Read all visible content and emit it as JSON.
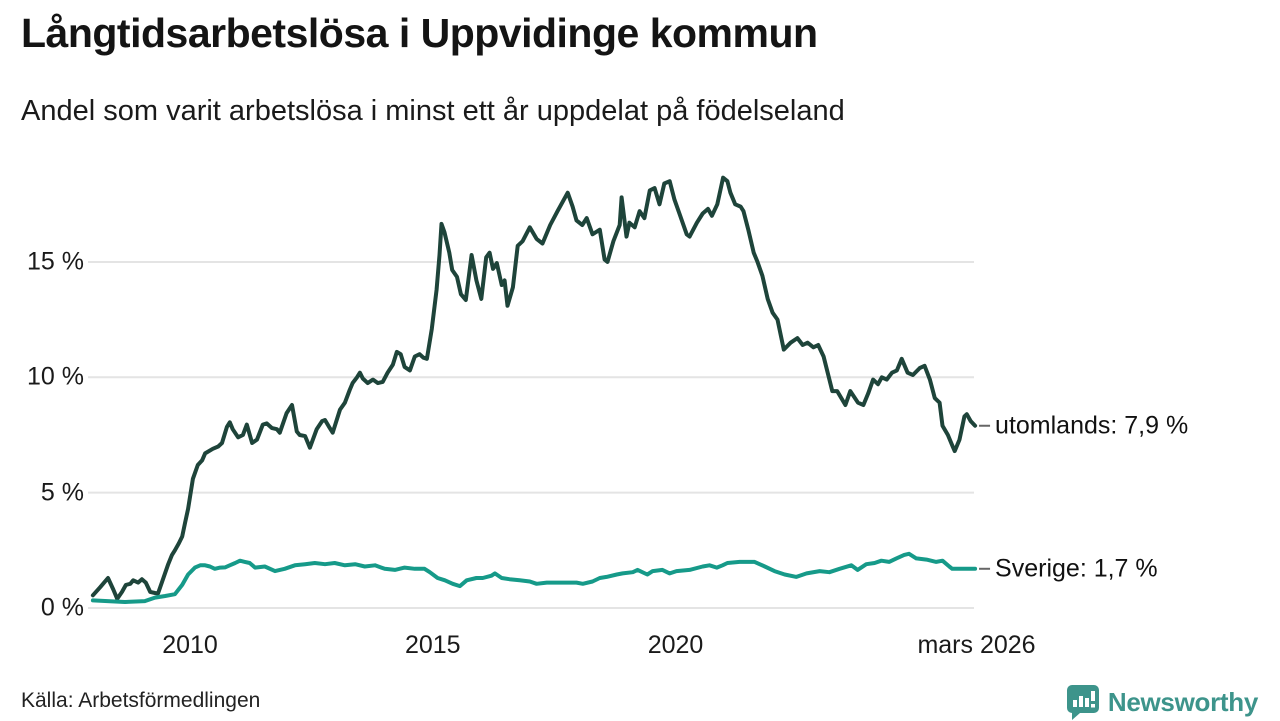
{
  "header": {
    "title": "Långtidsarbetslösa i Uppvidinge kommun",
    "subtitle": "Andel som varit arbetslösa i minst ett år uppdelat på födelseland"
  },
  "footer": {
    "source": "Källa: Arbetsförmedlingen",
    "brand": "Newsworthy"
  },
  "colors": {
    "grid": "#e4e4e4",
    "text": "#1a1a1a",
    "connector": "#666666",
    "brand": "#3d948b"
  },
  "chart_data": {
    "type": "line",
    "title": "Långtidsarbetslösa i Uppvidinge kommun",
    "subtitle": "Andel som varit arbetslösa i minst ett år uppdelat på födelseland",
    "xlabel": "",
    "ylabel": "",
    "ylim": [
      0,
      19
    ],
    "grid": "horizontal",
    "legend_position": "right-end-labels",
    "yticks": [
      {
        "value": 0,
        "label": "0 %"
      },
      {
        "value": 5,
        "label": "5 %"
      },
      {
        "value": 10,
        "label": "10 %"
      },
      {
        "value": 15,
        "label": "15 %"
      }
    ],
    "xticks": [
      {
        "year": 2010,
        "label": "2010"
      },
      {
        "year": 2015,
        "label": "2015"
      },
      {
        "year": 2020,
        "label": "2020"
      },
      {
        "year": 2026.2,
        "label": "mars 2026"
      }
    ],
    "series": [
      {
        "name": "utomlands",
        "label": "utomlands: 7,9 %",
        "last_value": "7,9 %",
        "color": "#1e443a",
        "points": [
          [
            2008.0,
            0.55
          ],
          [
            2008.15,
            0.9
          ],
          [
            2008.31,
            1.3
          ],
          [
            2008.42,
            0.8
          ],
          [
            2008.5,
            0.4
          ],
          [
            2008.6,
            0.7
          ],
          [
            2008.68,
            1.0
          ],
          [
            2008.77,
            1.05
          ],
          [
            2008.83,
            1.2
          ],
          [
            2008.93,
            1.1
          ],
          [
            2009.01,
            1.25
          ],
          [
            2009.09,
            1.1
          ],
          [
            2009.18,
            0.7
          ],
          [
            2009.28,
            0.65
          ],
          [
            2009.34,
            0.63
          ],
          [
            2009.42,
            1.1
          ],
          [
            2009.55,
            1.9
          ],
          [
            2009.63,
            2.3
          ],
          [
            2009.69,
            2.5
          ],
          [
            2009.77,
            2.8
          ],
          [
            2009.84,
            3.1
          ],
          [
            2009.9,
            3.7
          ],
          [
            2009.96,
            4.3
          ],
          [
            2010.06,
            5.6
          ],
          [
            2010.16,
            6.2
          ],
          [
            2010.25,
            6.4
          ],
          [
            2010.31,
            6.7
          ],
          [
            2010.47,
            6.9
          ],
          [
            2010.58,
            7.0
          ],
          [
            2010.66,
            7.15
          ],
          [
            2010.76,
            7.85
          ],
          [
            2010.82,
            8.05
          ],
          [
            2010.88,
            7.75
          ],
          [
            2010.99,
            7.4
          ],
          [
            2011.09,
            7.5
          ],
          [
            2011.17,
            7.95
          ],
          [
            2011.28,
            7.15
          ],
          [
            2011.38,
            7.3
          ],
          [
            2011.5,
            7.95
          ],
          [
            2011.58,
            8.0
          ],
          [
            2011.69,
            7.8
          ],
          [
            2011.79,
            7.75
          ],
          [
            2011.85,
            7.6
          ],
          [
            2011.99,
            8.45
          ],
          [
            2012.1,
            8.8
          ],
          [
            2012.2,
            7.65
          ],
          [
            2012.26,
            7.5
          ],
          [
            2012.37,
            7.45
          ],
          [
            2012.47,
            6.95
          ],
          [
            2012.61,
            7.75
          ],
          [
            2012.72,
            8.1
          ],
          [
            2012.78,
            8.15
          ],
          [
            2012.88,
            7.8
          ],
          [
            2012.94,
            7.6
          ],
          [
            2013.09,
            8.6
          ],
          [
            2013.19,
            8.9
          ],
          [
            2013.29,
            9.45
          ],
          [
            2013.35,
            9.75
          ],
          [
            2013.44,
            10.0
          ],
          [
            2013.5,
            10.2
          ],
          [
            2013.56,
            9.95
          ],
          [
            2013.66,
            9.75
          ],
          [
            2013.77,
            9.9
          ],
          [
            2013.87,
            9.75
          ],
          [
            2013.97,
            9.8
          ],
          [
            2014.07,
            10.2
          ],
          [
            2014.18,
            10.55
          ],
          [
            2014.26,
            11.1
          ],
          [
            2014.34,
            11.0
          ],
          [
            2014.42,
            10.45
          ],
          [
            2014.53,
            10.3
          ],
          [
            2014.63,
            10.9
          ],
          [
            2014.73,
            11.0
          ],
          [
            2014.81,
            10.85
          ],
          [
            2014.88,
            10.8
          ],
          [
            2014.98,
            12.1
          ],
          [
            2015.08,
            13.8
          ],
          [
            2015.14,
            15.3
          ],
          [
            2015.18,
            16.65
          ],
          [
            2015.24,
            16.3
          ],
          [
            2015.34,
            15.4
          ],
          [
            2015.4,
            14.65
          ],
          [
            2015.5,
            14.35
          ],
          [
            2015.58,
            13.6
          ],
          [
            2015.68,
            13.35
          ],
          [
            2015.8,
            15.3
          ],
          [
            2015.9,
            14.2
          ],
          [
            2016.0,
            13.4
          ],
          [
            2016.1,
            15.2
          ],
          [
            2016.17,
            15.4
          ],
          [
            2016.24,
            14.7
          ],
          [
            2016.32,
            14.95
          ],
          [
            2016.42,
            14.0
          ],
          [
            2016.48,
            14.2
          ],
          [
            2016.54,
            13.1
          ],
          [
            2016.65,
            13.9
          ],
          [
            2016.75,
            15.7
          ],
          [
            2016.85,
            15.9
          ],
          [
            2017.0,
            16.5
          ],
          [
            2017.14,
            16.0
          ],
          [
            2017.26,
            15.8
          ],
          [
            2017.42,
            16.6
          ],
          [
            2017.57,
            17.2
          ],
          [
            2017.78,
            18.0
          ],
          [
            2017.88,
            17.4
          ],
          [
            2017.96,
            16.8
          ],
          [
            2018.08,
            16.6
          ],
          [
            2018.17,
            16.9
          ],
          [
            2018.29,
            16.2
          ],
          [
            2018.44,
            16.4
          ],
          [
            2018.54,
            15.1
          ],
          [
            2018.6,
            15.0
          ],
          [
            2018.72,
            15.9
          ],
          [
            2018.85,
            16.6
          ],
          [
            2018.89,
            17.8
          ],
          [
            2018.99,
            16.1
          ],
          [
            2019.05,
            16.7
          ],
          [
            2019.16,
            16.5
          ],
          [
            2019.26,
            17.2
          ],
          [
            2019.36,
            16.9
          ],
          [
            2019.47,
            18.1
          ],
          [
            2019.57,
            18.2
          ],
          [
            2019.67,
            17.5
          ],
          [
            2019.77,
            18.4
          ],
          [
            2019.88,
            18.5
          ],
          [
            2019.98,
            17.7
          ],
          [
            2020.08,
            17.1
          ],
          [
            2020.23,
            16.2
          ],
          [
            2020.29,
            16.1
          ],
          [
            2020.44,
            16.7
          ],
          [
            2020.56,
            17.1
          ],
          [
            2020.67,
            17.3
          ],
          [
            2020.75,
            17.0
          ],
          [
            2020.86,
            17.5
          ],
          [
            2020.98,
            18.65
          ],
          [
            2021.07,
            18.5
          ],
          [
            2021.13,
            18.0
          ],
          [
            2021.23,
            17.5
          ],
          [
            2021.34,
            17.4
          ],
          [
            2021.4,
            17.2
          ],
          [
            2021.5,
            16.4
          ],
          [
            2021.61,
            15.4
          ],
          [
            2021.69,
            15.0
          ],
          [
            2021.79,
            14.4
          ],
          [
            2021.9,
            13.4
          ],
          [
            2022.0,
            12.8
          ],
          [
            2022.1,
            12.5
          ],
          [
            2022.23,
            11.2
          ],
          [
            2022.37,
            11.5
          ],
          [
            2022.51,
            11.7
          ],
          [
            2022.62,
            11.4
          ],
          [
            2022.72,
            11.5
          ],
          [
            2022.84,
            11.3
          ],
          [
            2022.94,
            11.4
          ],
          [
            2023.05,
            10.9
          ],
          [
            2023.23,
            9.4
          ],
          [
            2023.33,
            9.4
          ],
          [
            2023.5,
            8.8
          ],
          [
            2023.6,
            9.4
          ],
          [
            2023.76,
            8.9
          ],
          [
            2023.87,
            8.8
          ],
          [
            2023.97,
            9.3
          ],
          [
            2024.07,
            9.9
          ],
          [
            2024.17,
            9.7
          ],
          [
            2024.25,
            10.0
          ],
          [
            2024.35,
            9.9
          ],
          [
            2024.46,
            10.2
          ],
          [
            2024.56,
            10.3
          ],
          [
            2024.66,
            10.8
          ],
          [
            2024.78,
            10.2
          ],
          [
            2024.89,
            10.1
          ],
          [
            2025.03,
            10.4
          ],
          [
            2025.13,
            10.5
          ],
          [
            2025.24,
            9.9
          ],
          [
            2025.34,
            9.1
          ],
          [
            2025.44,
            8.9
          ],
          [
            2025.5,
            7.9
          ],
          [
            2025.61,
            7.5
          ],
          [
            2025.71,
            7.0
          ],
          [
            2025.75,
            6.8
          ],
          [
            2025.85,
            7.3
          ],
          [
            2025.95,
            8.3
          ],
          [
            2026.0,
            8.4
          ],
          [
            2026.08,
            8.1
          ],
          [
            2026.17,
            7.9
          ]
        ]
      },
      {
        "name": "sverige",
        "label": "Sverige: 1,7 %",
        "last_value": "1,7 %",
        "color": "#169a89",
        "points": [
          [
            2008.0,
            0.33
          ],
          [
            2008.3,
            0.3
          ],
          [
            2008.66,
            0.26
          ],
          [
            2009.07,
            0.3
          ],
          [
            2009.28,
            0.45
          ],
          [
            2009.49,
            0.52
          ],
          [
            2009.69,
            0.6
          ],
          [
            2009.84,
            1.0
          ],
          [
            2009.96,
            1.45
          ],
          [
            2010.1,
            1.75
          ],
          [
            2010.21,
            1.85
          ],
          [
            2010.31,
            1.85
          ],
          [
            2010.41,
            1.8
          ],
          [
            2010.51,
            1.7
          ],
          [
            2010.62,
            1.75
          ],
          [
            2010.72,
            1.76
          ],
          [
            2010.82,
            1.85
          ],
          [
            2010.93,
            1.95
          ],
          [
            2011.03,
            2.05
          ],
          [
            2011.13,
            2.0
          ],
          [
            2011.23,
            1.95
          ],
          [
            2011.34,
            1.75
          ],
          [
            2011.54,
            1.8
          ],
          [
            2011.75,
            1.6
          ],
          [
            2011.95,
            1.7
          ],
          [
            2012.16,
            1.85
          ],
          [
            2012.37,
            1.9
          ],
          [
            2012.57,
            1.95
          ],
          [
            2012.78,
            1.9
          ],
          [
            2012.98,
            1.95
          ],
          [
            2013.19,
            1.85
          ],
          [
            2013.4,
            1.9
          ],
          [
            2013.6,
            1.8
          ],
          [
            2013.81,
            1.85
          ],
          [
            2014.01,
            1.7
          ],
          [
            2014.22,
            1.65
          ],
          [
            2014.42,
            1.75
          ],
          [
            2014.63,
            1.7
          ],
          [
            2014.83,
            1.7
          ],
          [
            2014.94,
            1.55
          ],
          [
            2015.1,
            1.3
          ],
          [
            2015.25,
            1.2
          ],
          [
            2015.41,
            1.05
          ],
          [
            2015.56,
            0.95
          ],
          [
            2015.7,
            1.2
          ],
          [
            2015.9,
            1.3
          ],
          [
            2016.03,
            1.3
          ],
          [
            2016.21,
            1.4
          ],
          [
            2016.28,
            1.5
          ],
          [
            2016.42,
            1.3
          ],
          [
            2016.58,
            1.25
          ],
          [
            2016.79,
            1.2
          ],
          [
            2017.0,
            1.15
          ],
          [
            2017.14,
            1.05
          ],
          [
            2017.35,
            1.1
          ],
          [
            2017.55,
            1.1
          ],
          [
            2017.76,
            1.1
          ],
          [
            2017.96,
            1.1
          ],
          [
            2018.09,
            1.05
          ],
          [
            2018.29,
            1.15
          ],
          [
            2018.44,
            1.3
          ],
          [
            2018.58,
            1.35
          ],
          [
            2018.79,
            1.45
          ],
          [
            2018.91,
            1.5
          ],
          [
            2019.12,
            1.55
          ],
          [
            2019.22,
            1.65
          ],
          [
            2019.42,
            1.45
          ],
          [
            2019.53,
            1.6
          ],
          [
            2019.73,
            1.65
          ],
          [
            2019.88,
            1.5
          ],
          [
            2020.02,
            1.6
          ],
          [
            2020.29,
            1.65
          ],
          [
            2020.56,
            1.8
          ],
          [
            2020.7,
            1.85
          ],
          [
            2020.85,
            1.75
          ],
          [
            2020.97,
            1.85
          ],
          [
            2021.07,
            1.95
          ],
          [
            2021.32,
            2.0
          ],
          [
            2021.63,
            2.0
          ],
          [
            2021.84,
            1.8
          ],
          [
            2022.04,
            1.6
          ],
          [
            2022.25,
            1.45
          ],
          [
            2022.49,
            1.35
          ],
          [
            2022.7,
            1.5
          ],
          [
            2022.97,
            1.6
          ],
          [
            2023.17,
            1.55
          ],
          [
            2023.38,
            1.7
          ],
          [
            2023.62,
            1.85
          ],
          [
            2023.75,
            1.65
          ],
          [
            2023.93,
            1.9
          ],
          [
            2024.1,
            1.95
          ],
          [
            2024.24,
            2.05
          ],
          [
            2024.4,
            2.0
          ],
          [
            2024.55,
            2.15
          ],
          [
            2024.71,
            2.3
          ],
          [
            2024.81,
            2.35
          ],
          [
            2024.96,
            2.15
          ],
          [
            2025.17,
            2.1
          ],
          [
            2025.37,
            2.0
          ],
          [
            2025.5,
            2.05
          ],
          [
            2025.64,
            1.8
          ],
          [
            2025.7,
            1.7
          ],
          [
            2025.85,
            1.7
          ],
          [
            2026.0,
            1.7
          ],
          [
            2026.17,
            1.7
          ]
        ]
      }
    ]
  }
}
